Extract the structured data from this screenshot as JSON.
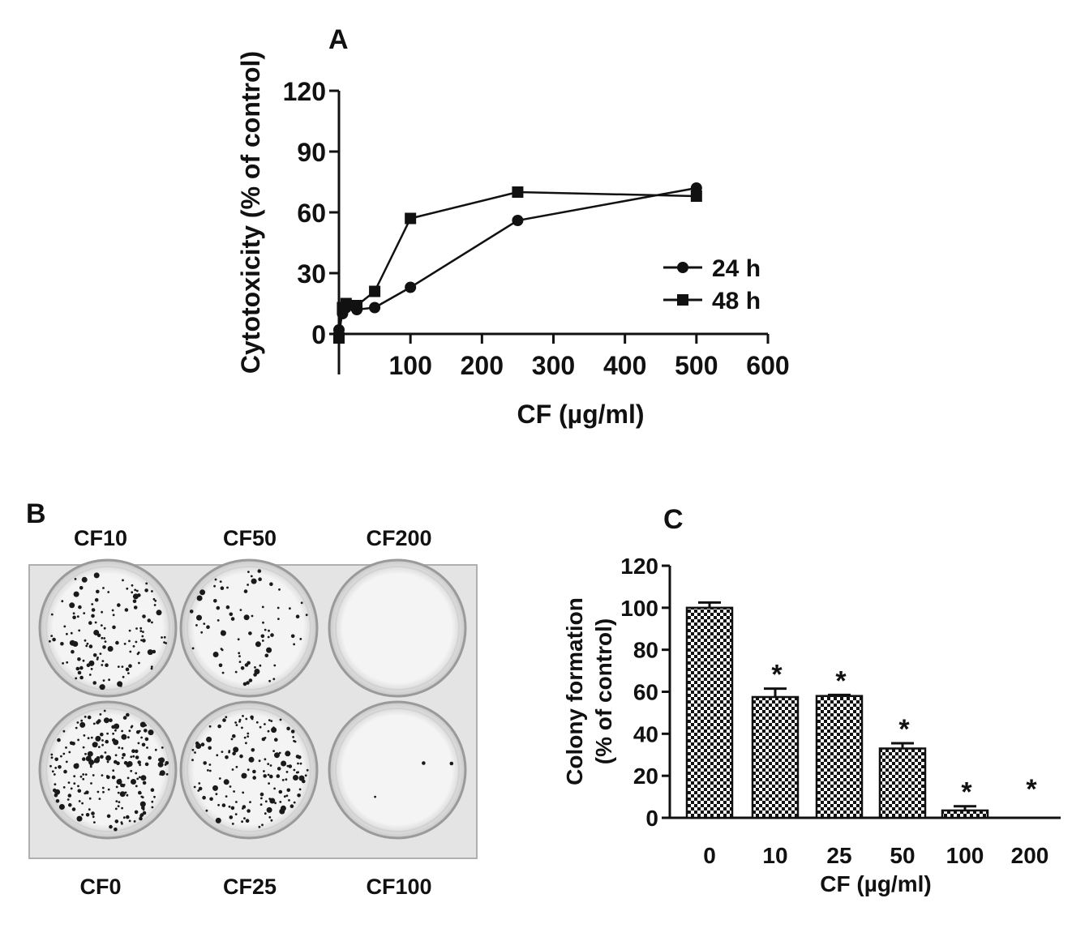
{
  "panels": {
    "a": "A",
    "b": "B",
    "c": "C"
  },
  "chart_data": [
    {
      "id": "A",
      "type": "line",
      "title": "",
      "xlabel": "CF (µg/ml)",
      "ylabel": "Cytotoxicity (% of control)",
      "xlim": [
        0,
        600
      ],
      "ylim": [
        0,
        120
      ],
      "xticks": [
        100,
        200,
        300,
        400,
        500,
        600
      ],
      "xtick_labels": [
        "100",
        "200",
        "300",
        "400",
        "500",
        "600"
      ],
      "yticks": [
        0,
        30,
        60,
        90,
        120
      ],
      "ytick_labels": [
        "0",
        "30",
        "60",
        "90",
        "120"
      ],
      "grid": false,
      "legend": "right",
      "series": [
        {
          "name": "24 h",
          "marker": "circle",
          "x": [
            0,
            5,
            10,
            25,
            50,
            100,
            250,
            500
          ],
          "y": [
            2,
            10,
            13,
            12,
            13,
            23,
            56,
            72
          ]
        },
        {
          "name": "48 h",
          "marker": "square",
          "x": [
            0,
            5,
            10,
            25,
            50,
            100,
            250,
            500
          ],
          "y": [
            -2,
            13,
            15,
            14,
            21,
            57,
            70,
            68
          ]
        }
      ]
    },
    {
      "id": "C",
      "type": "bar",
      "title": "",
      "xlabel": "CF (µg/ml)",
      "ylabel": "Colony formation",
      "ylabel2": "(% of control)",
      "categories": [
        "0",
        "10",
        "25",
        "50",
        "100",
        "200"
      ],
      "values": [
        100,
        57.5,
        58,
        33,
        3.5,
        0
      ],
      "errors": [
        2.5,
        4,
        0.5,
        2.5,
        2,
        0
      ],
      "significance": [
        "",
        "*",
        "*",
        "*",
        "*",
        "*"
      ],
      "ylim": [
        0,
        120
      ],
      "yticks": [
        0,
        20,
        40,
        60,
        80,
        100,
        120
      ],
      "ytick_labels": [
        "0",
        "20",
        "40",
        "60",
        "80",
        "100",
        "120"
      ],
      "grid": false
    }
  ],
  "plate": {
    "top_labels": [
      "CF10",
      "CF50",
      "CF200"
    ],
    "bottom_labels": [
      "CF0",
      "CF25",
      "CF100"
    ],
    "wells": [
      {
        "label": "CF10",
        "density": 0.5
      },
      {
        "label": "CF50",
        "density": 0.3
      },
      {
        "label": "CF200",
        "density": 0
      },
      {
        "label": "CF0",
        "density": 0.85
      },
      {
        "label": "CF25",
        "density": 0.6
      },
      {
        "label": "CF100",
        "density": 0.01
      }
    ]
  }
}
